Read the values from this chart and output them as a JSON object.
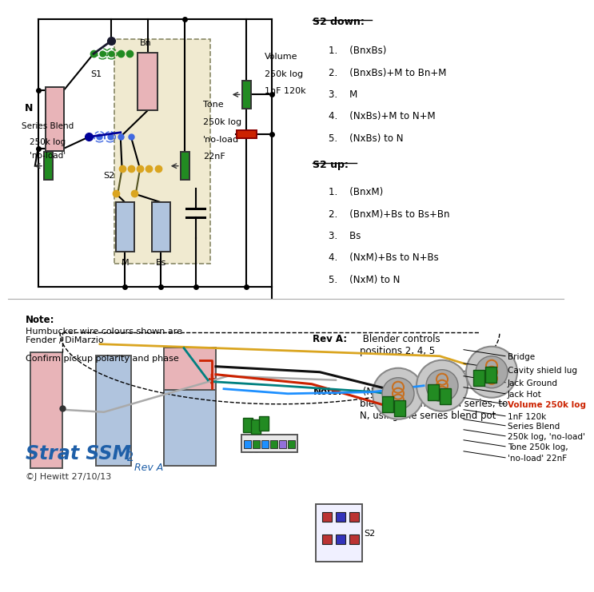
{
  "bg_color": "#ffffff",
  "s2down_title": "S2 down:",
  "s2down_items": [
    "1.    (BnxBs)",
    "2.    (BnxBs)+M to Bn+M",
    "3.    M",
    "4.    (NxBs)+M to N+M",
    "5.    (NxBs) to N"
  ],
  "s2up_title": "S2 up:",
  "s2up_items": [
    "1.    (BnxM)",
    "2.    (BnxM)+Bs to Bs+Bn",
    "3.    Bs",
    "4.    (NxM)+Bs to N+Bs",
    "5.    (NxM) to N"
  ],
  "reva_bold": "Rev A:",
  "reva_text": " Blender controls\npositions 2, 4, 5",
  "note_bold": "Note:",
  "note_text": " (NxM) to N indicates\nblending from NxM in series, to\nN, using the series blend pot",
  "bottom_note_title": "Note:",
  "bottom_note_body": "Humbucker wire colours shown are\nFender / DiMarzio\n\nConfirm pickup polarity and phase",
  "label_bridge": "Bridge",
  "label_cavity": "Cavity shield lug",
  "label_jack_gnd": "Jack Ground",
  "label_jack_hot": "Jack Hot",
  "label_volume": "Volume 250k log",
  "label_cap": "1nF 120k",
  "label_series_blend": "Series Blend",
  "label_sb_spec": "250k log, 'no-load'",
  "label_tone": "Tone 250k log,",
  "label_tone_spec": "'no-load' 22nF",
  "label_s1": "S1",
  "label_s2": "S2",
  "title_text": "Strat SSM",
  "title_sup": "2",
  "title_sub": "Rev A",
  "copyright": "©J Hewitt 27/10/13",
  "color_pink": "#e8b4b8",
  "color_blue_pickup": "#b0c4de",
  "color_green": "#228B22",
  "color_yellow_bg": "#f0ead0",
  "color_red": "#cc2200",
  "color_dark_blue": "#1e5fa8"
}
